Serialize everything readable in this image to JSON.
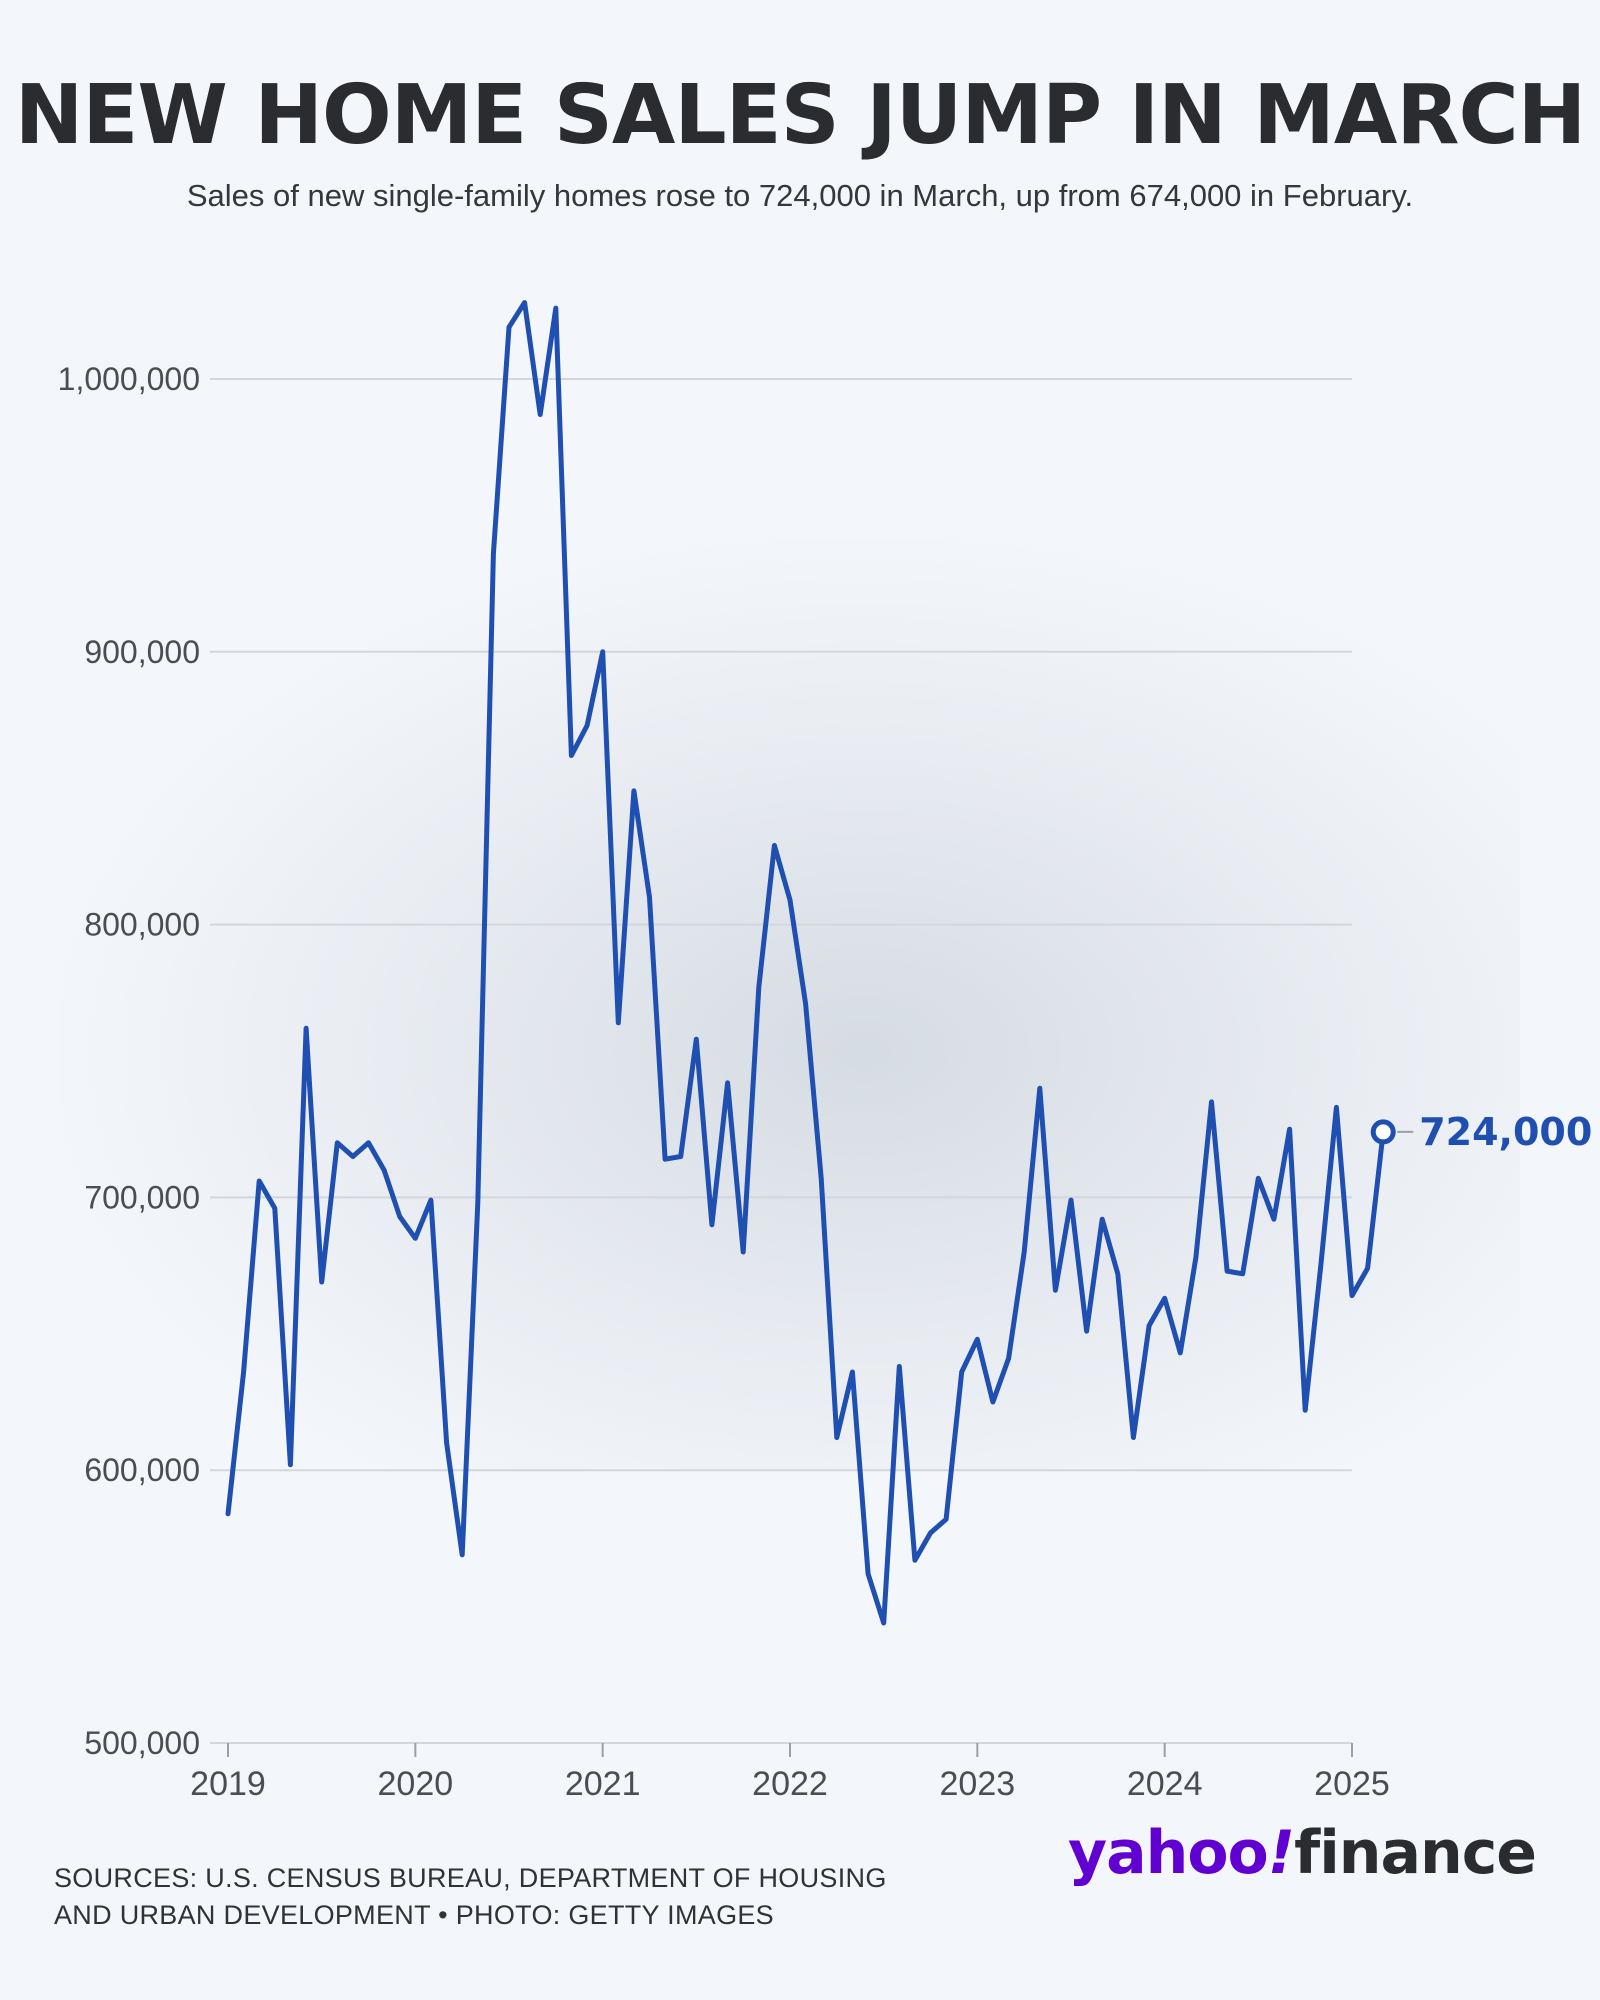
{
  "header": {
    "title": "NEW HOME SALES JUMP IN MARCH",
    "subtitle": "Sales of new single-family homes rose to 724,000 in March, up from 674,000 in February."
  },
  "footer": {
    "sources_line1": "SOURCES: U.S. CENSUS BUREAU, DEPARTMENT OF HOUSING",
    "sources_line2": "AND URBAN DEVELOPMENT • PHOTO: GETTY IMAGES",
    "logo_yahoo": "yahoo",
    "logo_bang": "!",
    "logo_finance": "finance"
  },
  "colors": {
    "line": "#1f4fb0",
    "grid": "#d3d7dd",
    "tick_text": "#4a4d52",
    "logo_purple": "#6001d2"
  },
  "chart_data": {
    "type": "line",
    "title": "NEW HOME SALES JUMP IN MARCH",
    "subtitle": "Sales of new single-family homes rose to 724,000 in March, up from 674,000 in February.",
    "xlabel": "",
    "ylabel": "",
    "x_range": [
      "2019-01",
      "2025-03"
    ],
    "ylim": [
      500000,
      1030000
    ],
    "y_ticks": [
      500000,
      600000,
      700000,
      800000,
      900000,
      1000000
    ],
    "y_tick_labels": [
      "500,000",
      "600,000",
      "700,000",
      "800,000",
      "900,000",
      "1,000,000"
    ],
    "x_ticks": [
      "2019",
      "2020",
      "2021",
      "2022",
      "2023",
      "2024",
      "2025"
    ],
    "grid": true,
    "end_label": "724,000",
    "series": [
      {
        "x": [
          "2019-01",
          "2019-02",
          "2019-03",
          "2019-04",
          "2019-05",
          "2019-06",
          "2019-07",
          "2019-08",
          "2019-09",
          "2019-10",
          "2019-11",
          "2019-12",
          "2020-01",
          "2020-02",
          "2020-03",
          "2020-04",
          "2020-05",
          "2020-06",
          "2020-07",
          "2020-08",
          "2020-09",
          "2020-10",
          "2020-11",
          "2020-12",
          "2021-01",
          "2021-02",
          "2021-03",
          "2021-04",
          "2021-05",
          "2021-06",
          "2021-07",
          "2021-08",
          "2021-09",
          "2021-10",
          "2021-11",
          "2021-12",
          "2022-01",
          "2022-02",
          "2022-03",
          "2022-04",
          "2022-05",
          "2022-06",
          "2022-07",
          "2022-08",
          "2022-09",
          "2022-10",
          "2022-11",
          "2022-12",
          "2023-01",
          "2023-02",
          "2023-03",
          "2023-04",
          "2023-05",
          "2023-06",
          "2023-07",
          "2023-08",
          "2023-09",
          "2023-10",
          "2023-11",
          "2023-12",
          "2024-01",
          "2024-02",
          "2024-03",
          "2024-04",
          "2024-05",
          "2024-06",
          "2024-07",
          "2024-08",
          "2024-09",
          "2024-10",
          "2024-11",
          "2024-12",
          "2025-01",
          "2025-02",
          "2025-03"
        ],
        "values": [
          584000,
          636000,
          706000,
          696000,
          602000,
          762000,
          669000,
          720000,
          715000,
          720000,
          710000,
          693000,
          685000,
          699000,
          610000,
          569000,
          698000,
          936000,
          1019000,
          1028000,
          987000,
          1026000,
          862000,
          873000,
          900000,
          764000,
          849000,
          810000,
          714000,
          715000,
          758000,
          690000,
          742000,
          680000,
          777000,
          829000,
          809000,
          771000,
          707000,
          612000,
          636000,
          562000,
          544000,
          638000,
          567000,
          577000,
          582000,
          636000,
          648000,
          625000,
          641000,
          680000,
          740000,
          666000,
          699000,
          651000,
          692000,
          672000,
          612000,
          653000,
          663000,
          643000,
          678000,
          735000,
          673000,
          672000,
          707000,
          692000,
          725000,
          622000,
          675000,
          733000,
          664000,
          674000,
          724000
        ]
      }
    ]
  }
}
